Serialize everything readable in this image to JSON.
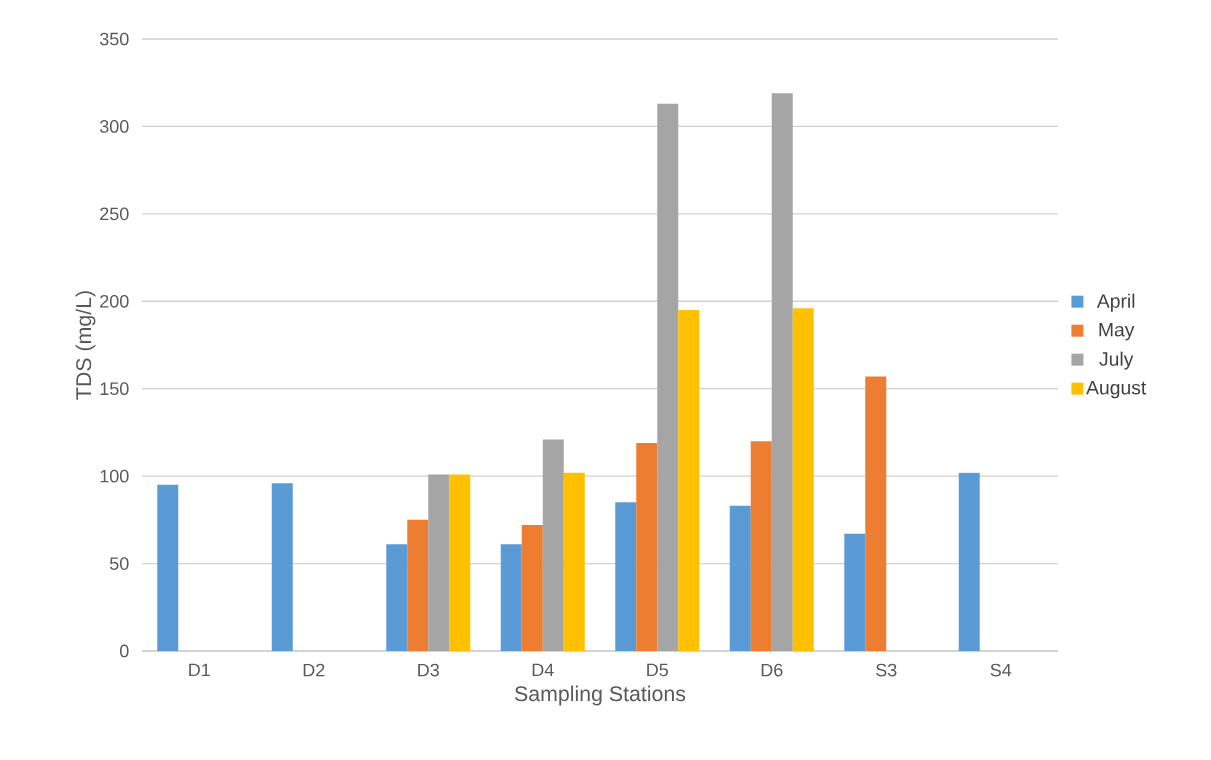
{
  "chart_data": {
    "type": "bar",
    "xlabel": "Sampling Stations",
    "ylabel": "TDS (mg/L)",
    "categories": [
      "D1",
      "D2",
      "D3",
      "D4",
      "D5",
      "D6",
      "S3",
      "S4"
    ],
    "series": [
      {
        "name": "April",
        "color": "#5b9bd5",
        "values": [
          95,
          96,
          61,
          61,
          85,
          83,
          67,
          102
        ]
      },
      {
        "name": "May",
        "color": "#ed7d31",
        "values": [
          null,
          null,
          75,
          72,
          119,
          120,
          157,
          null
        ]
      },
      {
        "name": "July",
        "color": "#a5a5a5",
        "values": [
          null,
          null,
          101,
          121,
          313,
          319,
          null,
          null
        ]
      },
      {
        "name": "August",
        "color": "#ffc000",
        "values": [
          null,
          null,
          101,
          102,
          195,
          196,
          null,
          null
        ]
      }
    ],
    "ylim": [
      0,
      350
    ],
    "yticks": [
      0,
      50,
      100,
      150,
      200,
      250,
      300,
      350
    ],
    "grid": "y",
    "legend": "right"
  }
}
